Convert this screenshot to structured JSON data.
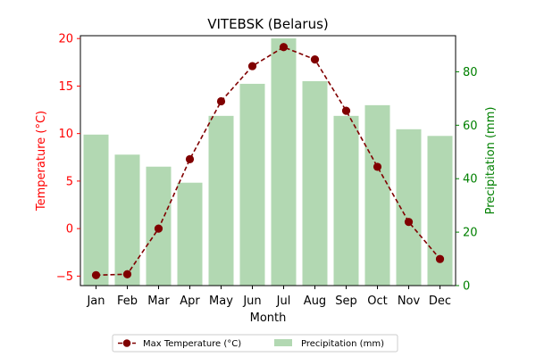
{
  "chart_data": {
    "type": "bar+line",
    "title": "VITEBSK (Belarus)",
    "xlabel": "Month",
    "categories": [
      "Jan",
      "Feb",
      "Mar",
      "Apr",
      "May",
      "Jun",
      "Jul",
      "Aug",
      "Sep",
      "Oct",
      "Nov",
      "Dec"
    ],
    "left_axis": {
      "label": "Temperature (°C)",
      "color": "#ff0000",
      "ylim": [
        -6,
        20.3
      ],
      "ticks": [
        -5,
        0,
        5,
        10,
        15,
        20
      ]
    },
    "right_axis": {
      "label": "Precipitation (mm)",
      "color": "#008000",
      "ylim": [
        0,
        93.5
      ],
      "ticks": [
        0,
        20,
        40,
        60,
        80
      ]
    },
    "series": [
      {
        "name": "Max Temperature (°C)",
        "kind": "line",
        "axis": "left",
        "color": "#800000",
        "values": [
          -4.9,
          -4.8,
          0,
          7.3,
          13.4,
          17.1,
          19.1,
          17.8,
          12.4,
          6.5,
          0.7,
          -3.2
        ]
      },
      {
        "name": "Precipitation (mm)",
        "kind": "bar",
        "axis": "right",
        "color": "#b2d8b2",
        "values": [
          56.5,
          49,
          44.5,
          38.5,
          63.5,
          75.5,
          92.5,
          76.5,
          63.5,
          67.5,
          58.5,
          56
        ]
      }
    ],
    "legend": {
      "placement": "bottom-center",
      "columns": 2
    },
    "grid": false
  }
}
